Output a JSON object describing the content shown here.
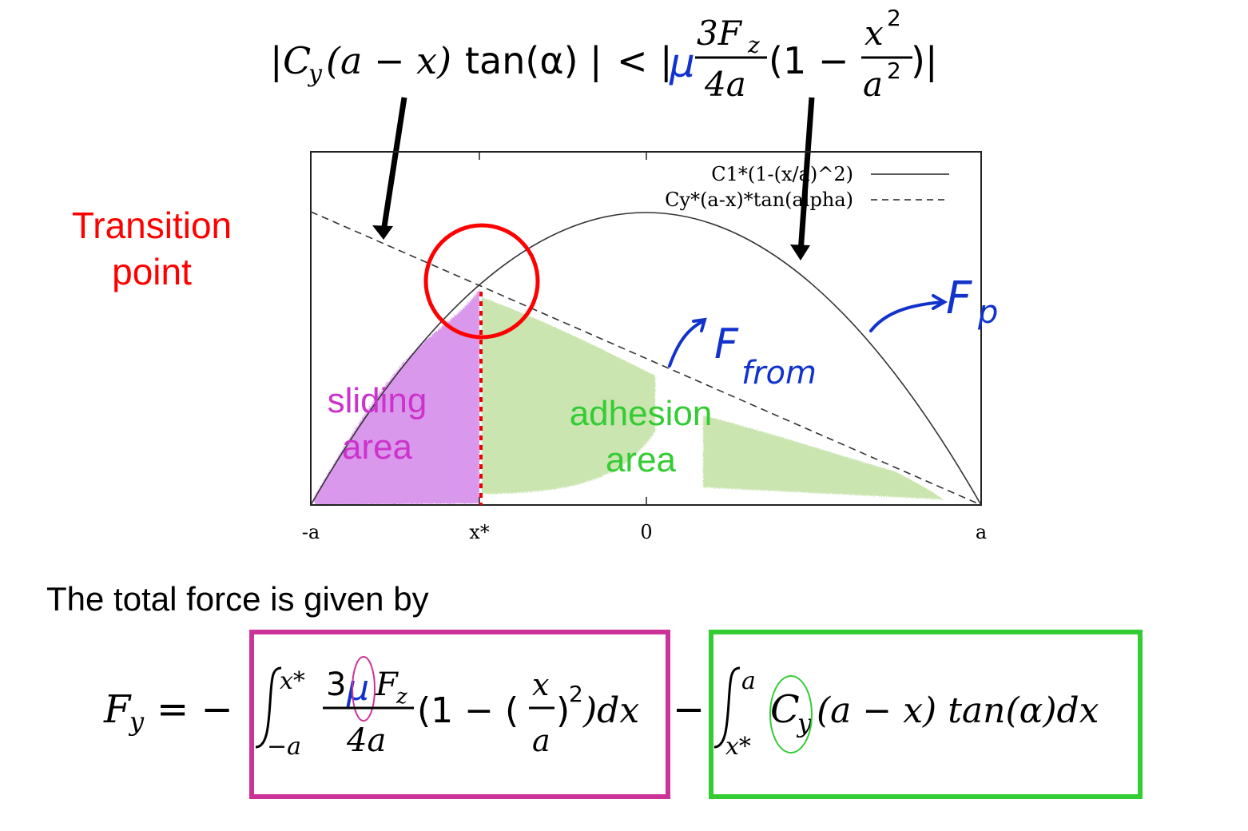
{
  "top_formula": {
    "lhs_open": "|",
    "lhs_c": "C",
    "lhs_c_sub": "y",
    "lhs_paren": "(a − x)",
    "lhs_tan": "tan(α)",
    "lhs_close": "|",
    "relation": "<",
    "rhs_open": "|",
    "mu": "μ",
    "frac_num": "3F",
    "frac_num_sub": "z",
    "frac_den": "4a",
    "paren_open": "(1 −",
    "x2_num": "x",
    "x2_den": "a",
    "sup": "2",
    "paren_close": ")|"
  },
  "chart_data": {
    "type": "line",
    "x_tick_labels": [
      "-a",
      "x*",
      "0",
      "a"
    ],
    "series": [
      {
        "name": "C1*(1-(x/a)^2)",
        "style": "solid"
      },
      {
        "name": "Cy*(a-x)*tan(alpha)",
        "style": "dashed"
      }
    ],
    "regions": {
      "sliding_line1": "sliding",
      "sliding_line2": "area",
      "adhesion_line1": "adhesion",
      "adhesion_line2": "area"
    }
  },
  "labels": {
    "transition_line1": "Transition",
    "transition_line2": "point",
    "f_from_main": "F",
    "f_from_sub": "from",
    "f_p_main": "F",
    "f_p_sub": "p"
  },
  "colors": {
    "transition": "#ff0000",
    "sliding": "#cc33cc",
    "adhesion": "#33cc33",
    "handwriting": "#1133cc",
    "box_pink": "#cc3399",
    "box_green": "#33cc33"
  },
  "bottom": {
    "heading": "The total force is given by",
    "formula": {
      "lhs": "F",
      "lhs_sub": "y",
      "equals_minus": "= −",
      "int1_upper": "x*",
      "int1_lower": "−a",
      "int1_num": "3",
      "int1_mu": "μ",
      "int1_num_f": "F",
      "int1_num_sub": "z",
      "int1_den": "4a",
      "int1_rest_a": "(1 − (",
      "int1_x_num": "x",
      "int1_x_den": "a",
      "int1_rest_b": ")",
      "int1_sup": "2",
      "int1_rest_c": ")dx",
      "minus": "−",
      "int2_upper": "a",
      "int2_lower": "x*",
      "int2_c": "C",
      "int2_c_sub": "y",
      "int2_rest": "(a − x) tan(α)dx"
    }
  }
}
